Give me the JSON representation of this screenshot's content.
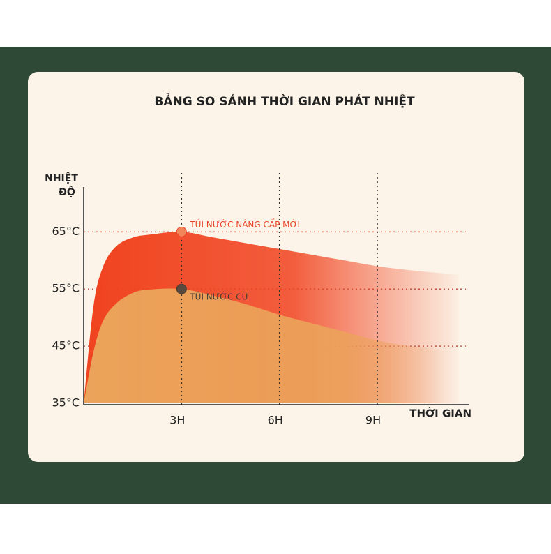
{
  "chart_data": {
    "type": "area",
    "title": "BẢNG SO SÁNH THỜI GIAN PHÁT NHIỆT",
    "y_label": [
      "NHIỆT",
      "ĐỘ"
    ],
    "x_label": "THỜI GIAN",
    "x": [
      0,
      0.3,
      0.6,
      1,
      1.5,
      2,
      3,
      4,
      5,
      6,
      7,
      8,
      9,
      10,
      11.5
    ],
    "series": [
      {
        "color": "#f0421e",
        "values": [
          35,
          52,
          59,
          62.5,
          64,
          64.5,
          65,
          64,
          63,
          62,
          61,
          60,
          59,
          58.3,
          57.5
        ]
      },
      {
        "color": "#eba35a",
        "values": [
          35,
          44,
          49.5,
          52.5,
          54.3,
          54.9,
          55,
          53.8,
          52.3,
          50.5,
          49,
          47.5,
          46,
          45,
          44
        ]
      }
    ],
    "annotations": [
      {
        "text": "TÚI NƯỚC NÂNG CẤP MỚI",
        "x": 3,
        "y": 65,
        "color": "#e8452a"
      },
      {
        "text": "TÚI NƯỚC CŨ",
        "x": 3,
        "y": 55,
        "color": "#4a3d33"
      }
    ],
    "xlim": [
      0,
      11.8
    ],
    "ylim": [
      35,
      72
    ],
    "xticks": [
      {
        "value": 3,
        "label": "3H"
      },
      {
        "value": 6,
        "label": "6H"
      },
      {
        "value": 9,
        "label": "9H"
      }
    ],
    "yticks": [
      {
        "value": 35,
        "label": "35°C"
      },
      {
        "value": 45,
        "label": "45°C"
      },
      {
        "value": 55,
        "label": "55°C"
      },
      {
        "value": 65,
        "label": "65°C"
      }
    ],
    "grid": true
  }
}
